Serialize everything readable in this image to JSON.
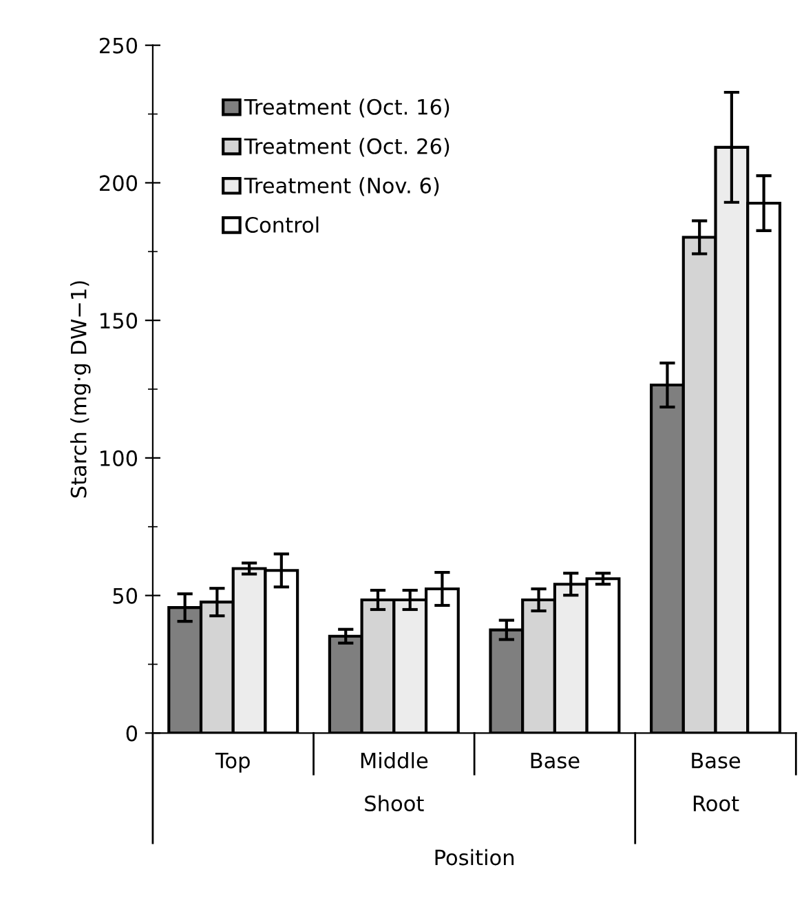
{
  "chart_data": {
    "type": "bar",
    "xlabel": "Position",
    "ylabel": "Starch (mg·g DW−1)",
    "categories": [
      "Top",
      "Middle",
      "Base",
      "Base"
    ],
    "series": [
      {
        "name": "Treatment (Oct. 16)",
        "color": "#7f7f7f",
        "values": [
          45.6,
          35.2,
          37.5,
          126.5
        ],
        "errors": [
          5,
          2.5,
          3.5,
          8
        ]
      },
      {
        "name": "Treatment (Oct. 26)",
        "color": "#d4d4d4",
        "values": [
          47.6,
          48.4,
          48.4,
          180.2
        ],
        "errors": [
          5,
          3.5,
          4,
          6
        ]
      },
      {
        "name": "Treatment (Nov. 6)",
        "color": "#ececec",
        "values": [
          59.8,
          48.4,
          54.1,
          212.9
        ],
        "errors": [
          2,
          3.5,
          4,
          20
        ]
      },
      {
        "name": "Control",
        "color": "#ffffff",
        "values": [
          59.1,
          52.4,
          56.1,
          192.6
        ],
        "errors": [
          6,
          6,
          2,
          10
        ]
      }
    ],
    "annotations": [
      "Shoot",
      "Root"
    ],
    "ylim": [
      0,
      250
    ],
    "yticks": [
      0,
      50,
      100,
      150,
      200,
      250
    ],
    "grid": false,
    "legend": "top left"
  }
}
